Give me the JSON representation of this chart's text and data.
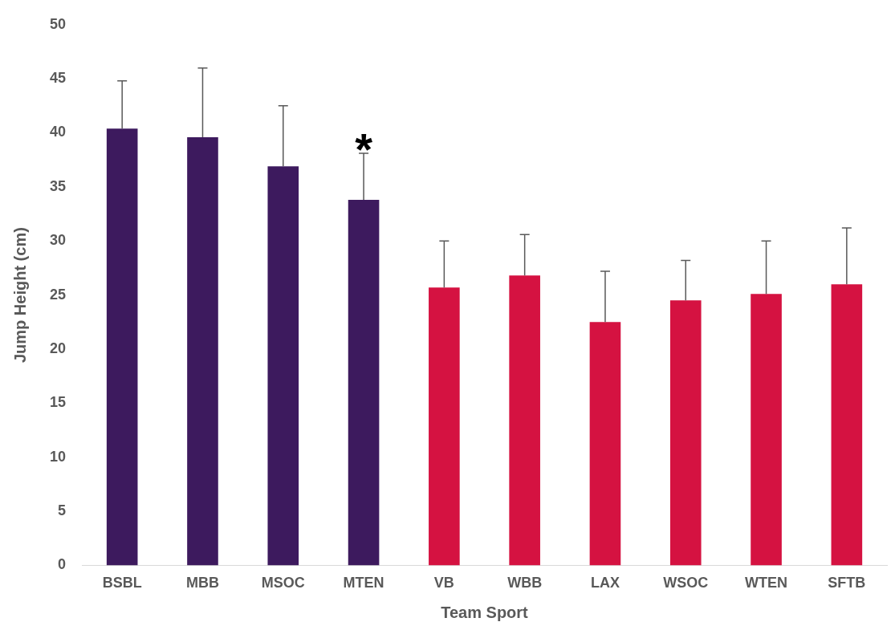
{
  "chart_data": {
    "type": "bar",
    "xlabel": "Team Sport",
    "ylabel": "Jump Height (cm)",
    "categories": [
      "BSBL",
      "MBB",
      "MSOC",
      "MTEN",
      "VB",
      "WBB",
      "LAX",
      "WSOC",
      "WTEN",
      "SFTB"
    ],
    "values": [
      40.4,
      39.6,
      36.9,
      33.8,
      25.7,
      26.8,
      22.5,
      24.5,
      25.1,
      26.0
    ],
    "colors": [
      "#3d1a5e",
      "#3d1a5e",
      "#3d1a5e",
      "#3d1a5e",
      "#d51241",
      "#d51241",
      "#d51241",
      "#d51241",
      "#d51241",
      "#d51241"
    ],
    "errors": [
      [
        40.4,
        44.8
      ],
      [
        39.6,
        46.0
      ],
      [
        36.9,
        42.5
      ],
      [
        33.8,
        38.1
      ],
      [
        25.7,
        30.0
      ],
      [
        26.8,
        30.6
      ],
      [
        22.5,
        27.2
      ],
      [
        24.5,
        28.2
      ],
      [
        25.1,
        30.0
      ],
      [
        26.0,
        31.2
      ]
    ],
    "annotations": [
      "*"
    ],
    "ylim": [
      0,
      50
    ],
    "yticks": [
      0,
      5,
      10,
      15,
      20,
      25,
      30,
      35,
      40,
      45,
      50
    ],
    "grid": false,
    "legend": false
  }
}
